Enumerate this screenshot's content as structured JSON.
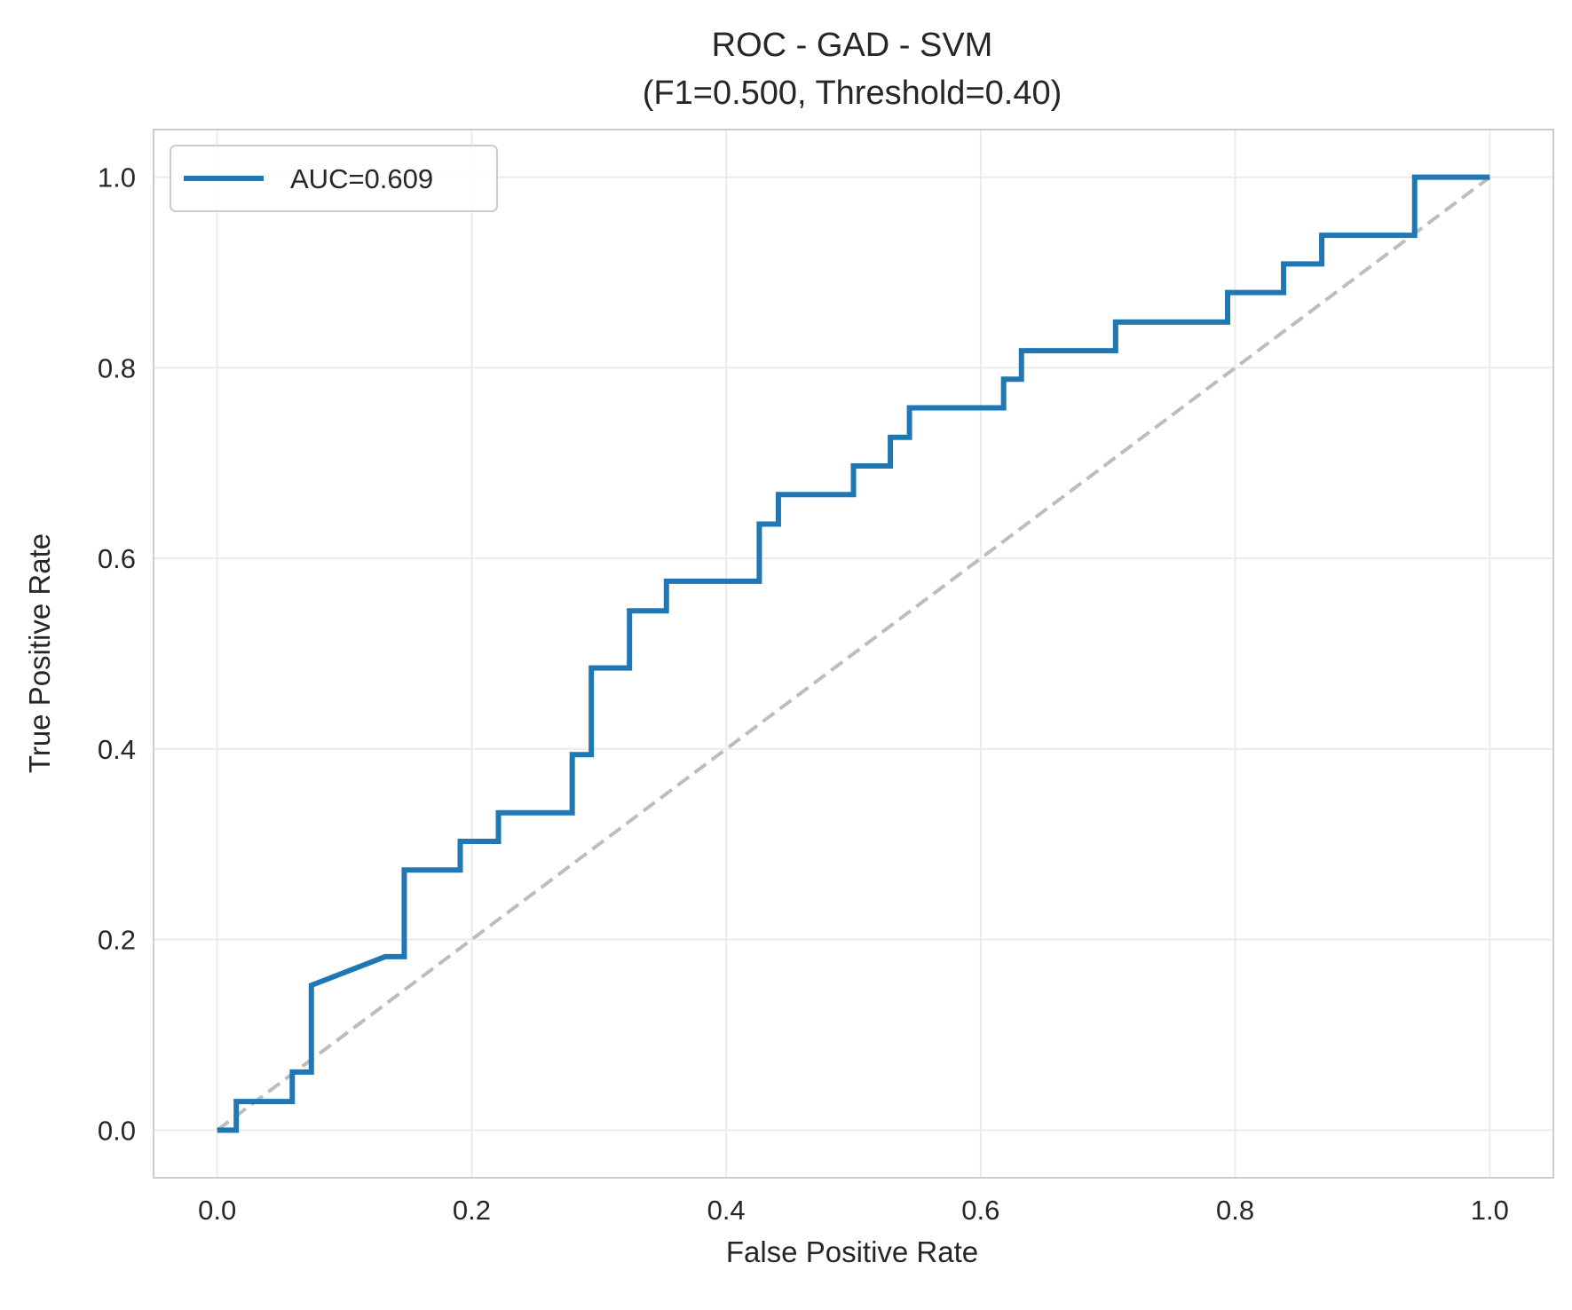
{
  "chart_data": {
    "type": "line",
    "title": "ROC - GAD - SVM",
    "subtitle": "(F1=0.500, Threshold=0.40)",
    "xlabel": "False Positive Rate",
    "ylabel": "True Positive Rate",
    "xlim": [
      -0.05,
      1.05
    ],
    "ylim": [
      -0.05,
      1.05
    ],
    "x_ticks": [
      "0.0",
      "0.2",
      "0.4",
      "0.6",
      "0.8",
      "1.0"
    ],
    "y_ticks": [
      "0.0",
      "0.2",
      "0.4",
      "0.6",
      "0.8",
      "1.0"
    ],
    "grid": true,
    "legend_position": "top-left",
    "series": [
      {
        "name": "AUC=0.609",
        "color": "#1f77b4",
        "style": "solid",
        "x": [
          0.0,
          0.015,
          0.015,
          0.059,
          0.059,
          0.074,
          0.074,
          0.132,
          0.147,
          0.147,
          0.191,
          0.191,
          0.221,
          0.221,
          0.279,
          0.279,
          0.294,
          0.294,
          0.324,
          0.324,
          0.353,
          0.353,
          0.426,
          0.426,
          0.441,
          0.441,
          0.5,
          0.5,
          0.529,
          0.529,
          0.544,
          0.544,
          0.618,
          0.618,
          0.632,
          0.632,
          0.706,
          0.706,
          0.794,
          0.794,
          0.838,
          0.838,
          0.868,
          0.868,
          0.941,
          0.941,
          1.0
        ],
        "y": [
          0.0,
          0.0,
          0.03,
          0.03,
          0.061,
          0.061,
          0.152,
          0.182,
          0.182,
          0.273,
          0.273,
          0.303,
          0.303,
          0.333,
          0.333,
          0.394,
          0.394,
          0.485,
          0.485,
          0.545,
          0.545,
          0.576,
          0.576,
          0.636,
          0.636,
          0.667,
          0.667,
          0.697,
          0.697,
          0.727,
          0.727,
          0.758,
          0.758,
          0.788,
          0.788,
          0.818,
          0.818,
          0.848,
          0.848,
          0.879,
          0.879,
          0.909,
          0.909,
          0.939,
          0.939,
          1.0,
          1.0
        ]
      },
      {
        "name": "",
        "color": "#bdbdbd",
        "style": "dashed",
        "x": [
          0.0,
          1.0
        ],
        "y": [
          0.0,
          1.0
        ]
      }
    ]
  }
}
